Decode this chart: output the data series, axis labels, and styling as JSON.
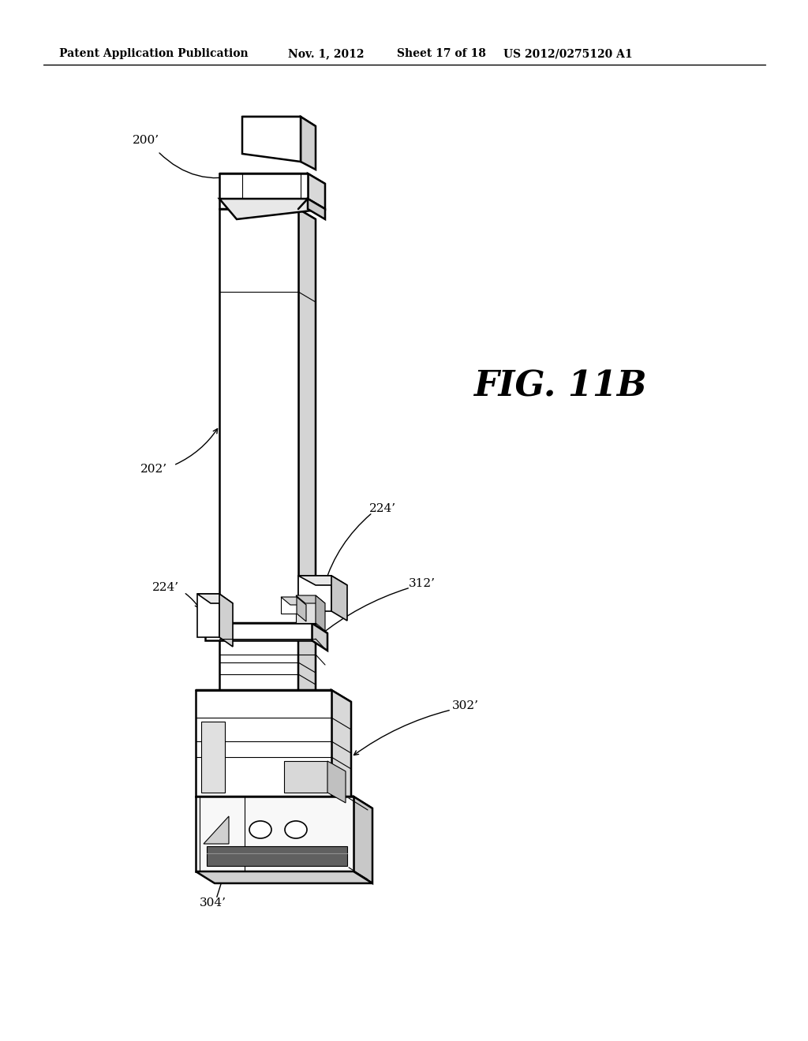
{
  "background_color": "#ffffff",
  "line_color": "#000000",
  "header_text": "Patent Application Publication",
  "header_date": "Nov. 1, 2012",
  "header_sheet": "Sheet 17 of 18",
  "header_patent": "US 2012/0275120 A1",
  "fig_label": "FIG. 11B",
  "labels": {
    "200prime": "200’",
    "202prime": "202’",
    "224prime_left": "224’",
    "224prime_right": "224’",
    "312prime": "312’",
    "302prime": "302’",
    "304prime": "304’"
  },
  "fig_width": 1024,
  "fig_height": 1320
}
